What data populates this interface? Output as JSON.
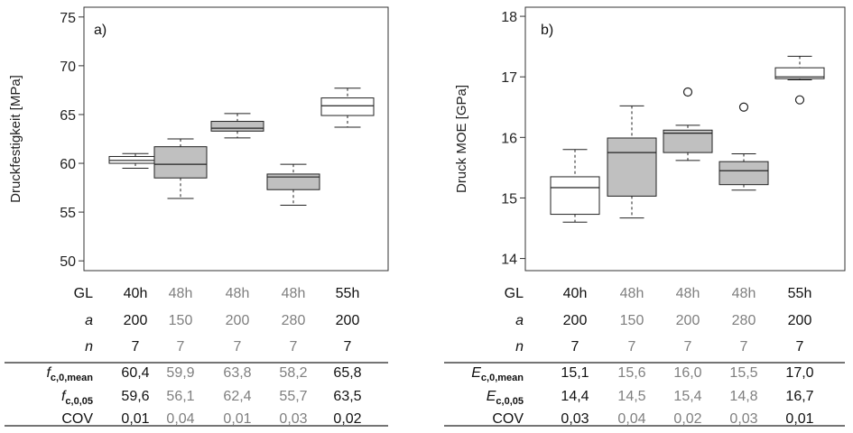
{
  "colors": {
    "box_fill_gray": "#c0c0c0",
    "box_fill_white": "#ffffff",
    "text_dark": "#111111",
    "text_grey": "#7f7f7f"
  },
  "chart_data": [
    {
      "type": "boxplot",
      "panel_label": "a)",
      "ylabel": "Druckfestigkeit [MPa]",
      "ylim": [
        49,
        76
      ],
      "yticks": [
        50,
        55,
        60,
        65,
        70,
        75
      ],
      "categories": [
        "40h",
        "48h",
        "48h",
        "48h",
        "55h"
      ],
      "boxes": [
        {
          "whisker_low": 59.5,
          "q1": 60.0,
          "median": 60.3,
          "q3": 60.7,
          "whisker_high": 61.0,
          "outliers": [],
          "fill": "white"
        },
        {
          "whisker_low": 56.4,
          "q1": 58.5,
          "median": 59.9,
          "q3": 61.7,
          "whisker_high": 62.5,
          "outliers": [],
          "fill": "gray"
        },
        {
          "whisker_low": 62.6,
          "q1": 63.3,
          "median": 63.6,
          "q3": 64.3,
          "whisker_high": 65.1,
          "outliers": [],
          "fill": "gray"
        },
        {
          "whisker_low": 55.7,
          "q1": 57.3,
          "median": 58.6,
          "q3": 58.9,
          "whisker_high": 59.9,
          "outliers": [],
          "fill": "gray"
        },
        {
          "whisker_low": 63.7,
          "q1": 64.9,
          "median": 65.9,
          "q3": 66.7,
          "whisker_high": 67.7,
          "outliers": [],
          "fill": "white"
        }
      ]
    },
    {
      "type": "boxplot",
      "panel_label": "b)",
      "ylabel": "Druck MOE [GPa]",
      "ylim": [
        13.8,
        18.15
      ],
      "yticks": [
        14,
        15,
        16,
        17,
        18
      ],
      "categories": [
        "40h",
        "48h",
        "48h",
        "48h",
        "55h"
      ],
      "boxes": [
        {
          "whisker_low": 14.6,
          "q1": 14.73,
          "median": 15.17,
          "q3": 15.35,
          "whisker_high": 15.8,
          "outliers": [],
          "fill": "white"
        },
        {
          "whisker_low": 14.67,
          "q1": 15.03,
          "median": 15.75,
          "q3": 15.99,
          "whisker_high": 16.52,
          "outliers": [],
          "fill": "gray"
        },
        {
          "whisker_low": 15.62,
          "q1": 15.75,
          "median": 16.07,
          "q3": 16.12,
          "whisker_high": 16.2,
          "outliers": [
            16.75
          ],
          "fill": "gray"
        },
        {
          "whisker_low": 15.13,
          "q1": 15.22,
          "median": 15.45,
          "q3": 15.6,
          "whisker_high": 15.73,
          "outliers": [
            16.5
          ],
          "fill": "gray"
        },
        {
          "whisker_low": 16.95,
          "q1": 16.97,
          "median": 17.0,
          "q3": 17.15,
          "whisker_high": 17.34,
          "outliers": [
            16.62
          ],
          "fill": "white"
        }
      ]
    }
  ],
  "table_left": {
    "rows": [
      {
        "label": "GL",
        "label_style": "plain",
        "values": [
          "40h",
          "48h",
          "48h",
          "48h",
          "55h"
        ]
      },
      {
        "label": "a",
        "label_style": "italic",
        "values": [
          "200",
          "150",
          "200",
          "280",
          "200"
        ]
      },
      {
        "label": "n",
        "label_style": "italic",
        "values": [
          "7",
          "7",
          "7",
          "7",
          "7"
        ]
      },
      {
        "label": "f",
        "label_sub": "c,0,mean",
        "label_style": "sub",
        "values": [
          "60,4",
          "59,9",
          "63,8",
          "58,2",
          "65,8"
        ]
      },
      {
        "label": "f",
        "label_sub": "c,0,05",
        "label_style": "sub",
        "values": [
          "59,6",
          "56,1",
          "62,4",
          "55,7",
          "63,5"
        ]
      },
      {
        "label": "COV",
        "label_style": "plain",
        "values": [
          "0,01",
          "0,04",
          "0,01",
          "0,03",
          "0,02"
        ]
      }
    ]
  },
  "table_right": {
    "rows": [
      {
        "label": "GL",
        "label_style": "plain",
        "values": [
          "40h",
          "48h",
          "48h",
          "48h",
          "55h"
        ]
      },
      {
        "label": "a",
        "label_style": "italic",
        "values": [
          "200",
          "150",
          "200",
          "280",
          "200"
        ]
      },
      {
        "label": "n",
        "label_style": "italic",
        "values": [
          "7",
          "7",
          "7",
          "7",
          "7"
        ]
      },
      {
        "label": "E",
        "label_sub": "c,0,mean",
        "label_style": "sub",
        "values": [
          "15,1",
          "15,6",
          "16,0",
          "15,5",
          "17,0"
        ]
      },
      {
        "label": "E",
        "label_sub": "c,0,05",
        "label_style": "sub",
        "values": [
          "14,4",
          "14,5",
          "15,4",
          "14,8",
          "16,7"
        ]
      },
      {
        "label": "COV",
        "label_style": "plain",
        "values": [
          "0,03",
          "0,04",
          "0,02",
          "0,03",
          "0,01"
        ]
      }
    ]
  },
  "column_tone": [
    "dark",
    "grey",
    "grey",
    "grey",
    "dark"
  ]
}
